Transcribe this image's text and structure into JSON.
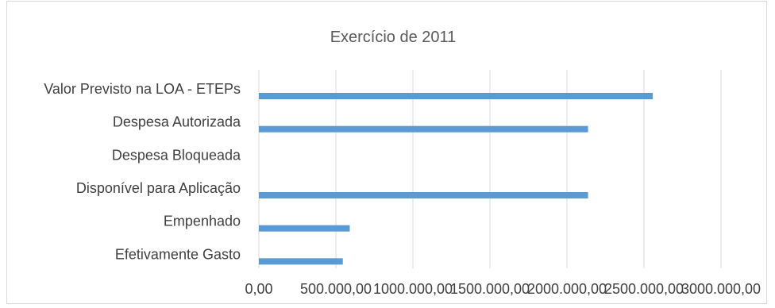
{
  "chart_data": {
    "type": "bar",
    "orientation": "horizontal",
    "title": "Exercício de 2011",
    "categories": [
      "Valor Previsto na LOA - ETEPs",
      "Despesa Autorizada",
      "Despesa Bloqueada",
      "Disponível para Aplicação",
      "Empenhado",
      "Efetivamente Gasto"
    ],
    "values": [
      2557000,
      2137000,
      0,
      2137000,
      590000,
      545000
    ],
    "xlim": [
      0,
      3000000
    ],
    "xticks": [
      0,
      500000,
      1000000,
      1500000,
      2000000,
      2500000,
      3000000
    ],
    "xtick_labels": [
      "0,00",
      "500.000,00",
      "1000.000,00",
      "1500.000,00",
      "2000.000,00",
      "2500.000,00",
      "3000.000,00"
    ],
    "grid": true,
    "bar_color": "#5b9bd5"
  }
}
